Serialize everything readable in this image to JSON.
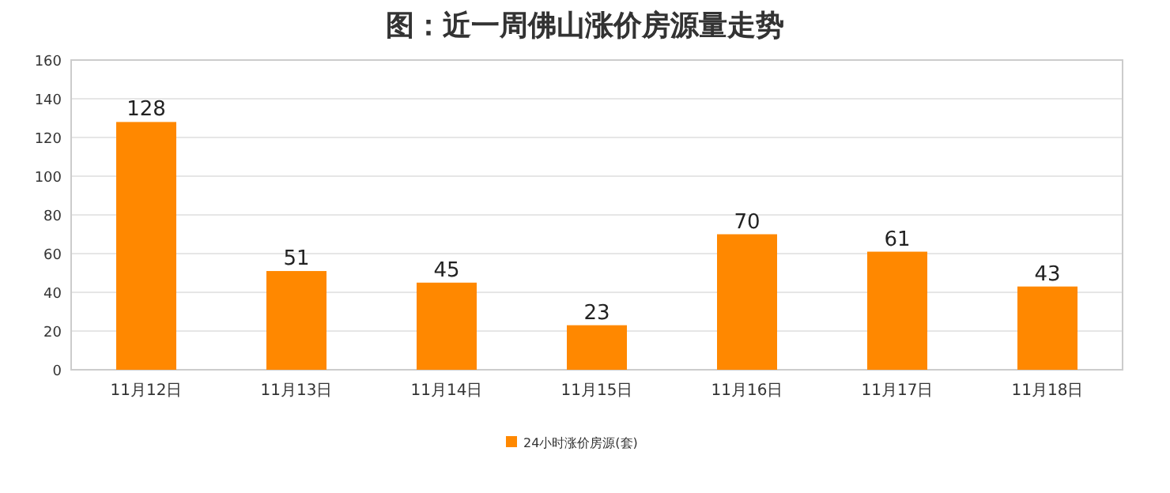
{
  "chart_data": {
    "type": "bar",
    "title": "图：近一周佛山涨价房源量走势",
    "categories": [
      "11月12日",
      "11月13日",
      "11月14日",
      "11月15日",
      "11月16日",
      "11月17日",
      "11月18日"
    ],
    "series": [
      {
        "name": "24小时涨价房源(套)",
        "color": "#ff8800",
        "values": [
          128,
          51,
          45,
          23,
          70,
          61,
          43
        ]
      }
    ],
    "ylim": [
      0,
      160
    ],
    "yticks": [
      0,
      20,
      40,
      60,
      80,
      100,
      120,
      140,
      160
    ],
    "grid": "y",
    "legend": "bottom",
    "data_labels": true
  }
}
